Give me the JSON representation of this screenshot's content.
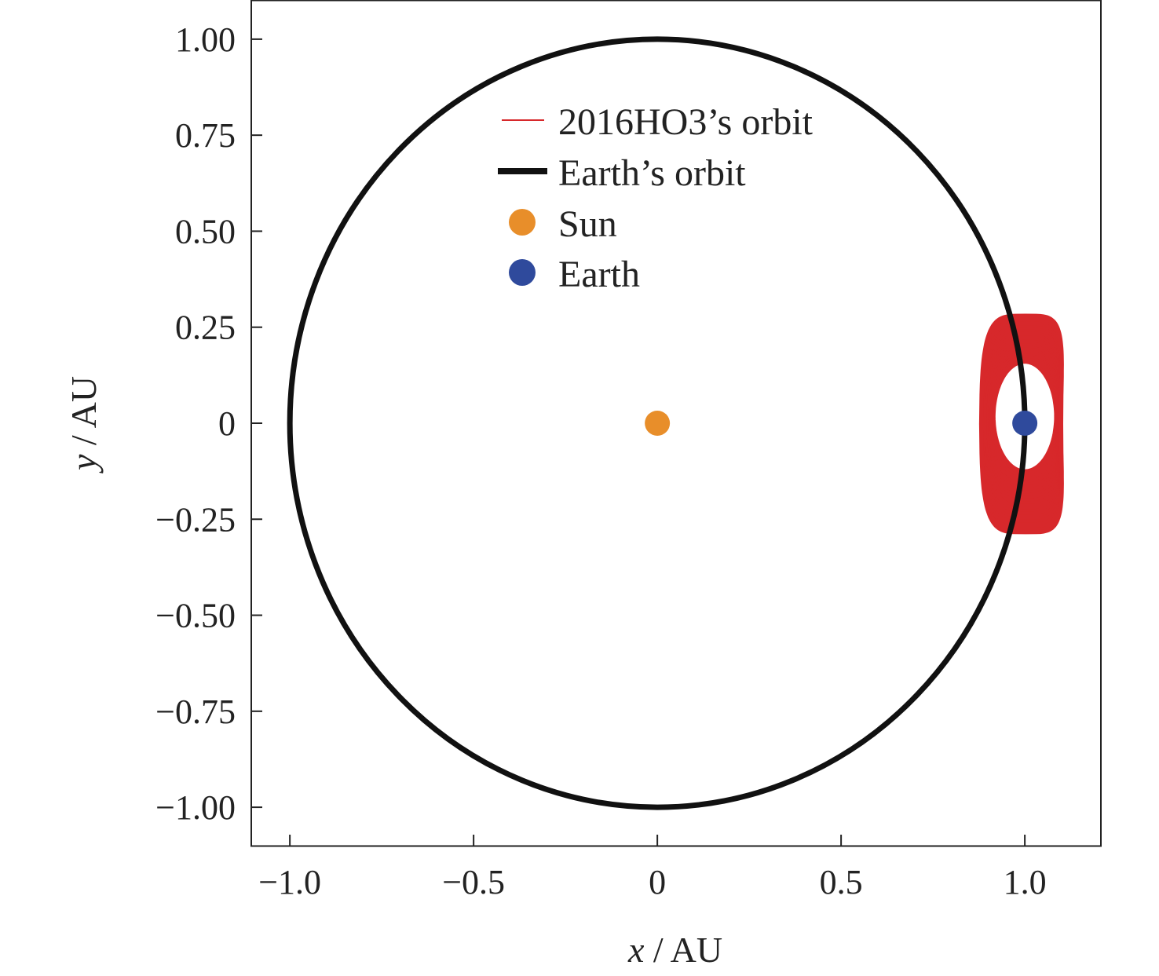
{
  "chart_data": {
    "type": "line",
    "title": "",
    "xlabel_var": "x",
    "xlabel_unit": " / AU",
    "ylabel_var": "y",
    "ylabel_unit": " / AU",
    "xlim": [
      -1.105,
      1.207
    ],
    "ylim": [
      -1.1,
      1.102
    ],
    "x_ticks": [
      {
        "value": -1.0,
        "label": "−1.0"
      },
      {
        "value": -0.5,
        "label": "−0.5"
      },
      {
        "value": 0,
        "label": "0"
      },
      {
        "value": 0.5,
        "label": "0.5"
      },
      {
        "value": 1.0,
        "label": "1.0"
      }
    ],
    "y_ticks": [
      {
        "value": 1.0,
        "label": "1.00"
      },
      {
        "value": 0.75,
        "label": "0.75"
      },
      {
        "value": 0.5,
        "label": "0.50"
      },
      {
        "value": 0.25,
        "label": "0.25"
      },
      {
        "value": 0,
        "label": "0"
      },
      {
        "value": -0.25,
        "label": "−0.25"
      },
      {
        "value": -0.5,
        "label": "−0.50"
      },
      {
        "value": -0.75,
        "label": "−0.75"
      },
      {
        "value": -1.0,
        "label": "−1.00"
      }
    ],
    "grid": false,
    "legend_position": "top-center",
    "series": [
      {
        "name": "2016HO3’s orbit",
        "kind": "line",
        "color": "#d7282b",
        "x_range": [
          0.893,
          1.111
        ],
        "y_range": [
          -0.284,
          0.28
        ],
        "inner_gap_x_range": [
          0.915,
          1.085
        ],
        "inner_gap_y_range": [
          -0.125,
          0.16
        ],
        "loops": 24
      },
      {
        "name": "Earth’s orbit",
        "kind": "line",
        "color": "#111111",
        "radius": 1.0,
        "center": [
          0,
          0
        ]
      },
      {
        "name": "Sun",
        "kind": "point",
        "color": "#e88e2a",
        "x": 0,
        "y": 0
      },
      {
        "name": "Earth",
        "kind": "point",
        "color": "#2f4a9c",
        "x": 1.0,
        "y": 0
      }
    ]
  }
}
